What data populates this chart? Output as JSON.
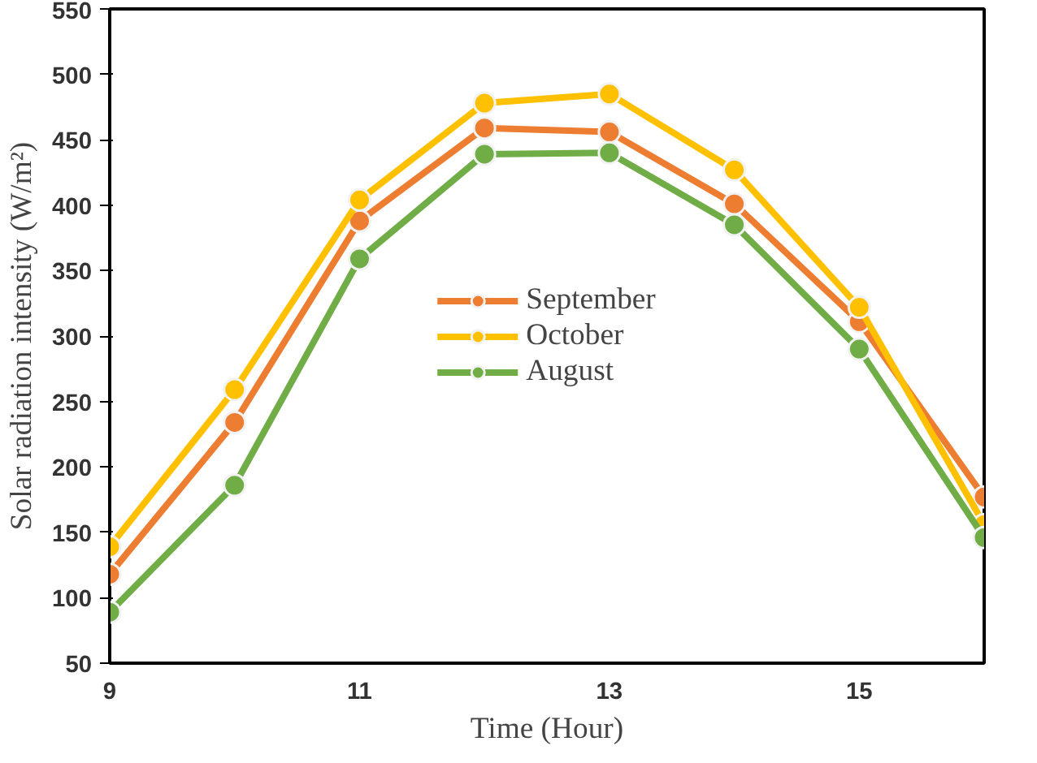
{
  "chart_data": {
    "type": "line",
    "xlabel": "Time (Hour)",
    "ylabel": "Solar radiation intensity (W/m²)",
    "x": [
      9,
      10,
      11,
      12,
      13,
      14,
      15,
      16
    ],
    "series": [
      {
        "name": "September",
        "color": "#ed7d31",
        "values": [
          118,
          234,
          388,
          459,
          456,
          401,
          311,
          177
        ]
      },
      {
        "name": "October",
        "color": "#ffc000",
        "values": [
          139,
          259,
          404,
          478,
          485,
          427,
          322,
          156
        ]
      },
      {
        "name": "August",
        "color": "#70ad47",
        "values": [
          89,
          186,
          359,
          439,
          440,
          385,
          290,
          146
        ]
      }
    ],
    "xlim": [
      9,
      16
    ],
    "xticks": [
      9,
      11,
      13,
      15
    ],
    "ylim": [
      50,
      550
    ],
    "yticks": [
      50,
      100,
      150,
      200,
      250,
      300,
      350,
      400,
      450,
      500,
      550
    ],
    "grid": false,
    "legend": "center",
    "marker": "circle",
    "line_style": "solid"
  }
}
